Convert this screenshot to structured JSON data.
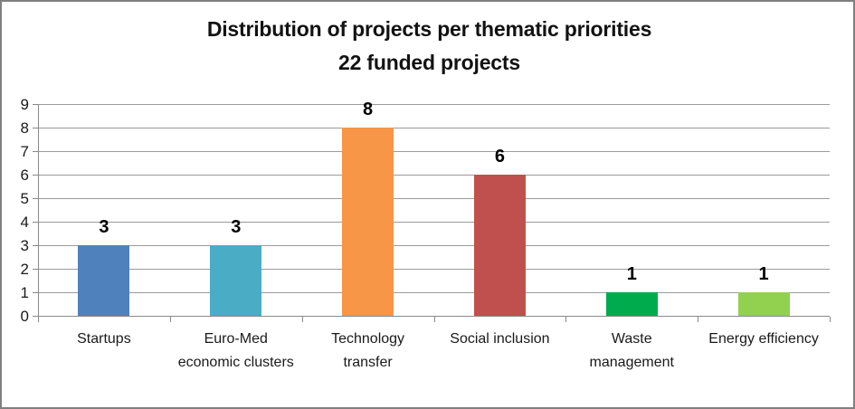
{
  "chart_data": {
    "type": "bar",
    "title": "Distribution of projects per thematic priorities",
    "subtitle": "22 funded projects",
    "categories": [
      "Startups",
      "Euro-Med economic clusters",
      "Technology transfer",
      "Social inclusion",
      "Waste management",
      "Energy efficiency"
    ],
    "values": [
      3,
      3,
      8,
      6,
      1,
      1
    ],
    "data_labels": [
      "3",
      "3",
      "8",
      "6",
      "1",
      "1"
    ],
    "bar_colors": [
      "#4F81BD",
      "#4BACC6",
      "#F79646",
      "#C0504D",
      "#00AB4E",
      "#92D050"
    ],
    "xlabel": "",
    "ylabel": "",
    "ytick_labels": [
      "0",
      "1",
      "2",
      "3",
      "4",
      "5",
      "6",
      "7",
      "8",
      "9"
    ],
    "ylim": [
      0,
      9
    ],
    "ytick_step": 1,
    "grid": true,
    "legend": "none",
    "gridline_color": "#9B9B9B",
    "axis_color": "#8A8A8A",
    "frame_border_color": "#808080",
    "background_color": "#FFFFFF"
  }
}
